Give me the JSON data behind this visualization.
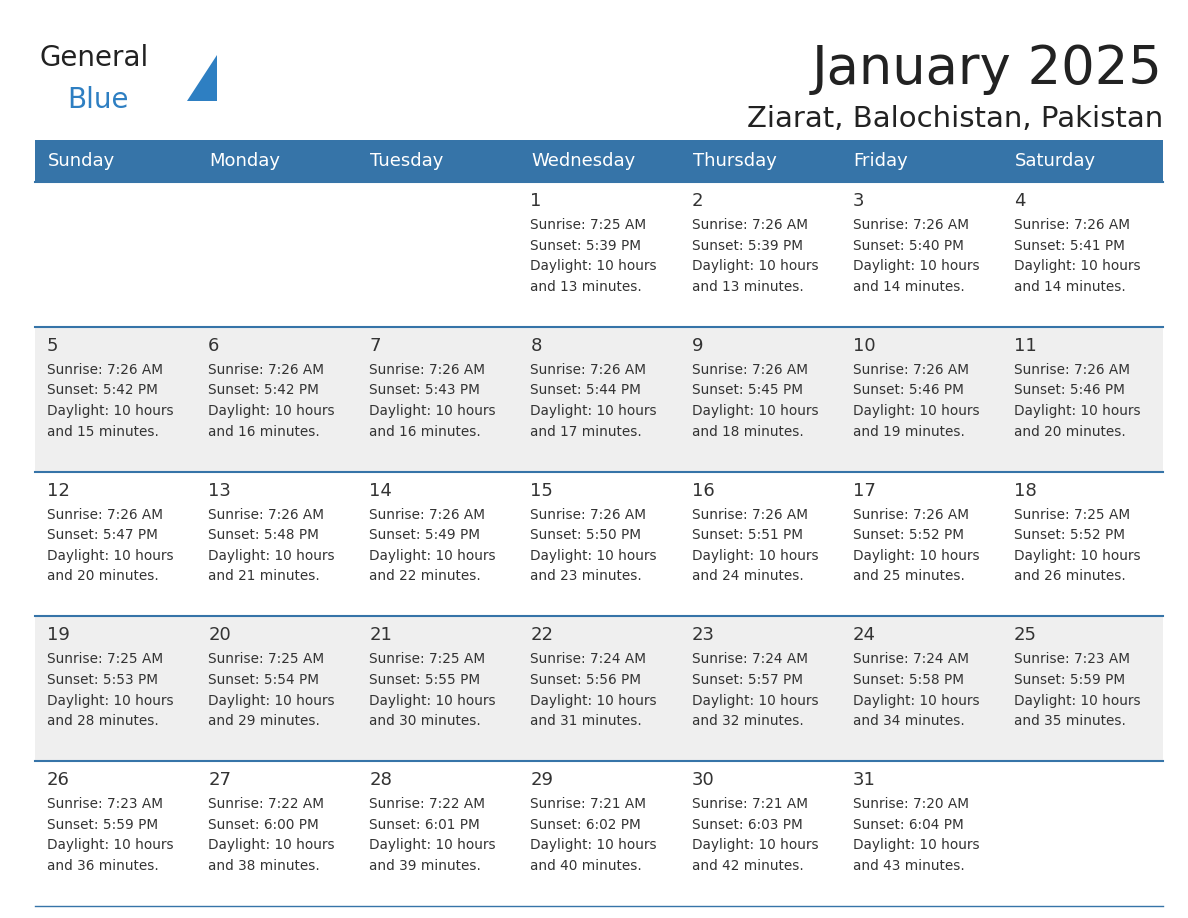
{
  "title": "January 2025",
  "subtitle": "Ziarat, Balochistan, Pakistan",
  "header_color": "#3674a8",
  "header_text_color": "#ffffff",
  "bg_color": "#ffffff",
  "row_colors": [
    "#ffffff",
    "#efefef",
    "#ffffff",
    "#efefef",
    "#ffffff"
  ],
  "cell_text_color": "#333333",
  "border_color": "#3674a8",
  "days_of_week": [
    "Sunday",
    "Monday",
    "Tuesday",
    "Wednesday",
    "Thursday",
    "Friday",
    "Saturday"
  ],
  "calendar_data": [
    [
      {
        "day": "",
        "info": ""
      },
      {
        "day": "",
        "info": ""
      },
      {
        "day": "",
        "info": ""
      },
      {
        "day": "1",
        "info": "Sunrise: 7:25 AM\nSunset: 5:39 PM\nDaylight: 10 hours\nand 13 minutes."
      },
      {
        "day": "2",
        "info": "Sunrise: 7:26 AM\nSunset: 5:39 PM\nDaylight: 10 hours\nand 13 minutes."
      },
      {
        "day": "3",
        "info": "Sunrise: 7:26 AM\nSunset: 5:40 PM\nDaylight: 10 hours\nand 14 minutes."
      },
      {
        "day": "4",
        "info": "Sunrise: 7:26 AM\nSunset: 5:41 PM\nDaylight: 10 hours\nand 14 minutes."
      }
    ],
    [
      {
        "day": "5",
        "info": "Sunrise: 7:26 AM\nSunset: 5:42 PM\nDaylight: 10 hours\nand 15 minutes."
      },
      {
        "day": "6",
        "info": "Sunrise: 7:26 AM\nSunset: 5:42 PM\nDaylight: 10 hours\nand 16 minutes."
      },
      {
        "day": "7",
        "info": "Sunrise: 7:26 AM\nSunset: 5:43 PM\nDaylight: 10 hours\nand 16 minutes."
      },
      {
        "day": "8",
        "info": "Sunrise: 7:26 AM\nSunset: 5:44 PM\nDaylight: 10 hours\nand 17 minutes."
      },
      {
        "day": "9",
        "info": "Sunrise: 7:26 AM\nSunset: 5:45 PM\nDaylight: 10 hours\nand 18 minutes."
      },
      {
        "day": "10",
        "info": "Sunrise: 7:26 AM\nSunset: 5:46 PM\nDaylight: 10 hours\nand 19 minutes."
      },
      {
        "day": "11",
        "info": "Sunrise: 7:26 AM\nSunset: 5:46 PM\nDaylight: 10 hours\nand 20 minutes."
      }
    ],
    [
      {
        "day": "12",
        "info": "Sunrise: 7:26 AM\nSunset: 5:47 PM\nDaylight: 10 hours\nand 20 minutes."
      },
      {
        "day": "13",
        "info": "Sunrise: 7:26 AM\nSunset: 5:48 PM\nDaylight: 10 hours\nand 21 minutes."
      },
      {
        "day": "14",
        "info": "Sunrise: 7:26 AM\nSunset: 5:49 PM\nDaylight: 10 hours\nand 22 minutes."
      },
      {
        "day": "15",
        "info": "Sunrise: 7:26 AM\nSunset: 5:50 PM\nDaylight: 10 hours\nand 23 minutes."
      },
      {
        "day": "16",
        "info": "Sunrise: 7:26 AM\nSunset: 5:51 PM\nDaylight: 10 hours\nand 24 minutes."
      },
      {
        "day": "17",
        "info": "Sunrise: 7:26 AM\nSunset: 5:52 PM\nDaylight: 10 hours\nand 25 minutes."
      },
      {
        "day": "18",
        "info": "Sunrise: 7:25 AM\nSunset: 5:52 PM\nDaylight: 10 hours\nand 26 minutes."
      }
    ],
    [
      {
        "day": "19",
        "info": "Sunrise: 7:25 AM\nSunset: 5:53 PM\nDaylight: 10 hours\nand 28 minutes."
      },
      {
        "day": "20",
        "info": "Sunrise: 7:25 AM\nSunset: 5:54 PM\nDaylight: 10 hours\nand 29 minutes."
      },
      {
        "day": "21",
        "info": "Sunrise: 7:25 AM\nSunset: 5:55 PM\nDaylight: 10 hours\nand 30 minutes."
      },
      {
        "day": "22",
        "info": "Sunrise: 7:24 AM\nSunset: 5:56 PM\nDaylight: 10 hours\nand 31 minutes."
      },
      {
        "day": "23",
        "info": "Sunrise: 7:24 AM\nSunset: 5:57 PM\nDaylight: 10 hours\nand 32 minutes."
      },
      {
        "day": "24",
        "info": "Sunrise: 7:24 AM\nSunset: 5:58 PM\nDaylight: 10 hours\nand 34 minutes."
      },
      {
        "day": "25",
        "info": "Sunrise: 7:23 AM\nSunset: 5:59 PM\nDaylight: 10 hours\nand 35 minutes."
      }
    ],
    [
      {
        "day": "26",
        "info": "Sunrise: 7:23 AM\nSunset: 5:59 PM\nDaylight: 10 hours\nand 36 minutes."
      },
      {
        "day": "27",
        "info": "Sunrise: 7:22 AM\nSunset: 6:00 PM\nDaylight: 10 hours\nand 38 minutes."
      },
      {
        "day": "28",
        "info": "Sunrise: 7:22 AM\nSunset: 6:01 PM\nDaylight: 10 hours\nand 39 minutes."
      },
      {
        "day": "29",
        "info": "Sunrise: 7:21 AM\nSunset: 6:02 PM\nDaylight: 10 hours\nand 40 minutes."
      },
      {
        "day": "30",
        "info": "Sunrise: 7:21 AM\nSunset: 6:03 PM\nDaylight: 10 hours\nand 42 minutes."
      },
      {
        "day": "31",
        "info": "Sunrise: 7:20 AM\nSunset: 6:04 PM\nDaylight: 10 hours\nand 43 minutes."
      },
      {
        "day": "",
        "info": ""
      }
    ]
  ],
  "logo_general_color": "#222222",
  "logo_blue_color": "#2e7fc2",
  "title_fontsize": 38,
  "subtitle_fontsize": 21,
  "header_fontsize": 13,
  "day_num_fontsize": 13,
  "info_fontsize": 9.8
}
